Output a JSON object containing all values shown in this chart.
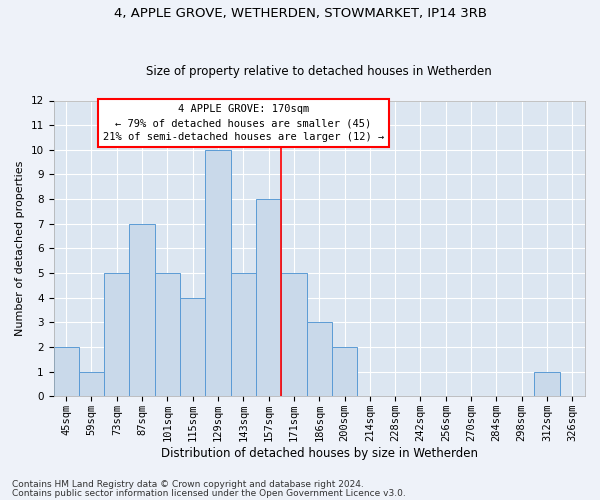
{
  "title1": "4, APPLE GROVE, WETHERDEN, STOWMARKET, IP14 3RB",
  "title2": "Size of property relative to detached houses in Wetherden",
  "xlabel": "Distribution of detached houses by size in Wetherden",
  "ylabel": "Number of detached properties",
  "categories": [
    "45sqm",
    "59sqm",
    "73sqm",
    "87sqm",
    "101sqm",
    "115sqm",
    "129sqm",
    "143sqm",
    "157sqm",
    "171sqm",
    "186sqm",
    "200sqm",
    "214sqm",
    "228sqm",
    "242sqm",
    "256sqm",
    "270sqm",
    "284sqm",
    "298sqm",
    "312sqm",
    "326sqm"
  ],
  "values": [
    2,
    1,
    5,
    7,
    5,
    4,
    10,
    5,
    8,
    5,
    3,
    2,
    0,
    0,
    0,
    0,
    0,
    0,
    0,
    1,
    0
  ],
  "bar_color": "#c9d9ea",
  "bar_edge_color": "#5b9bd5",
  "highlight_index": 9,
  "ylim": [
    0,
    12
  ],
  "yticks": [
    0,
    1,
    2,
    3,
    4,
    5,
    6,
    7,
    8,
    9,
    10,
    11,
    12
  ],
  "annotation_title": "4 APPLE GROVE: 170sqm",
  "annotation_line1": "← 79% of detached houses are smaller (45)",
  "annotation_line2": "21% of semi-detached houses are larger (12) →",
  "footnote1": "Contains HM Land Registry data © Crown copyright and database right 2024.",
  "footnote2": "Contains public sector information licensed under the Open Government Licence v3.0.",
  "fig_bg_color": "#eef2f9",
  "ax_bg_color": "#dce6f1",
  "grid_color": "#ffffff",
  "title1_fontsize": 9.5,
  "title2_fontsize": 8.5,
  "tick_fontsize": 7.5,
  "ylabel_fontsize": 8,
  "xlabel_fontsize": 8.5,
  "annotation_fontsize": 7.5,
  "footnote_fontsize": 6.5
}
